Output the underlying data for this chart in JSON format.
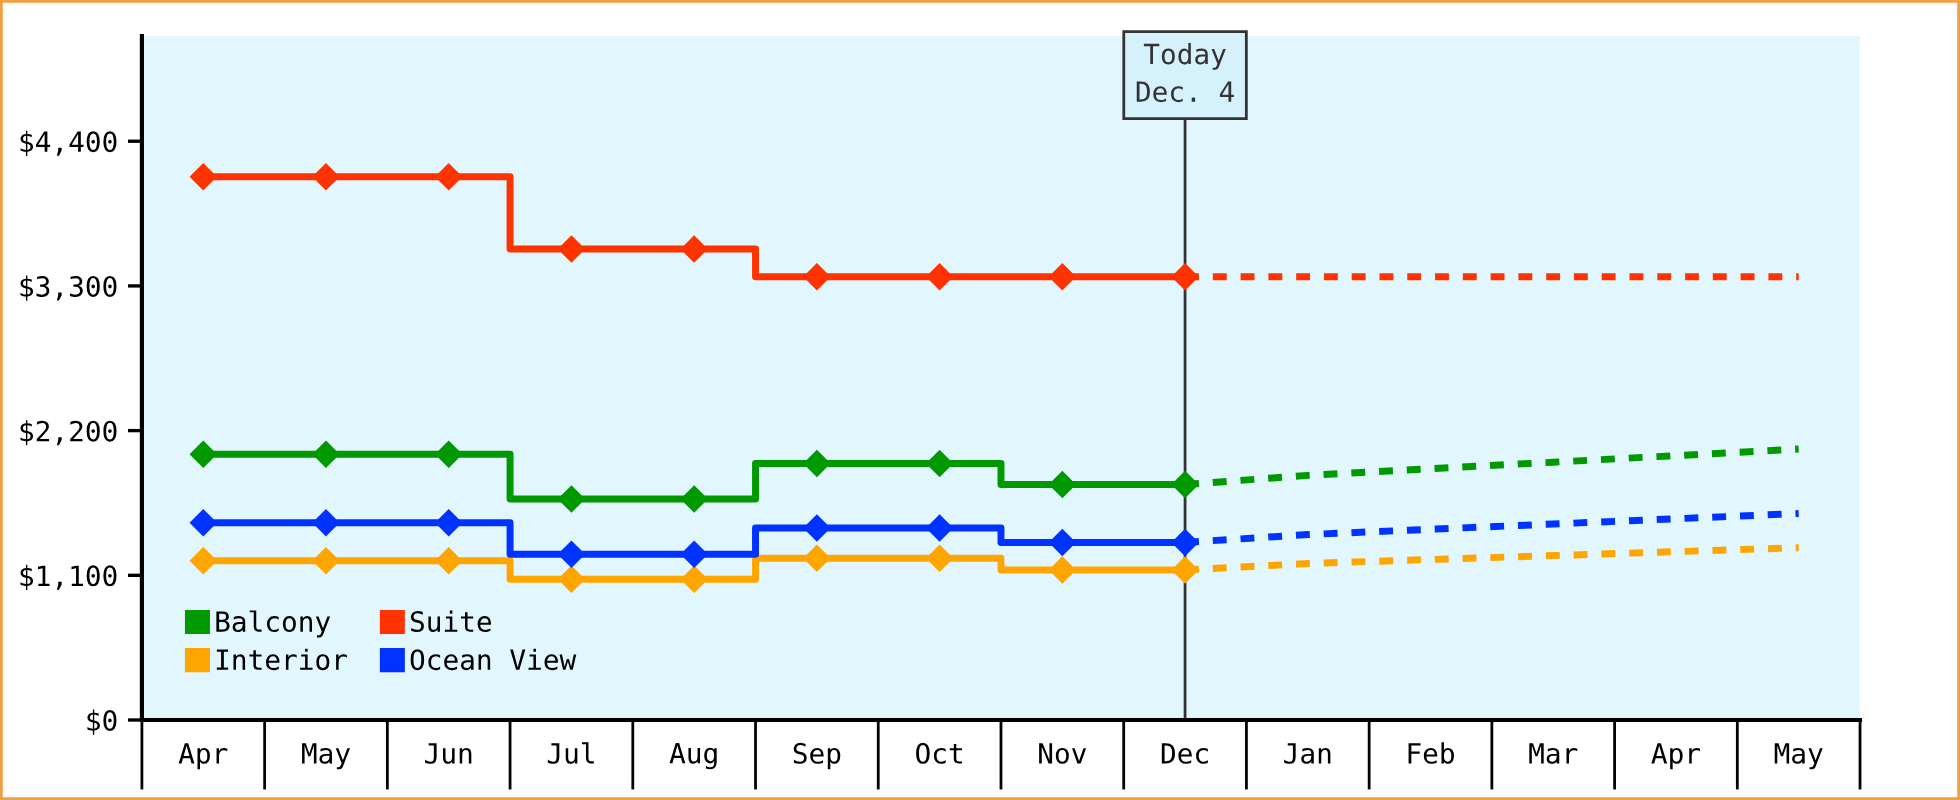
{
  "chart_data": {
    "type": "step",
    "categories": [
      "Apr",
      "May",
      "Jun",
      "Jul",
      "Aug",
      "Sep",
      "Oct",
      "Nov",
      "Dec",
      "Jan",
      "Feb",
      "Mar",
      "Apr",
      "May"
    ],
    "ylim": [
      0,
      5200
    ],
    "yticks": [
      {
        "value": 0,
        "label": "$0"
      },
      {
        "value": 1100,
        "label": "$1,100"
      },
      {
        "value": 2200,
        "label": "$2,200"
      },
      {
        "value": 3300,
        "label": "$3,300"
      },
      {
        "value": 4400,
        "label": "$4,400"
      }
    ],
    "grid": false,
    "legend": "bottom left",
    "marker": "diamond",
    "series": [
      {
        "name": "Balcony",
        "color": "#009900",
        "line_style": "solid",
        "values": [
          2020,
          2020,
          2020,
          1680,
          1680,
          1950,
          1950,
          1790,
          1790,
          null,
          null,
          null,
          null,
          null
        ]
      },
      {
        "name": "Interior",
        "color": "#ffa500",
        "line_style": "solid",
        "values": [
          1210,
          1210,
          1210,
          1070,
          1070,
          1230,
          1230,
          1140,
          1140,
          null,
          null,
          null,
          null,
          null
        ]
      },
      {
        "name": "Suite",
        "color": "#ff3300",
        "line_style": "solid",
        "values": [
          4130,
          4130,
          4130,
          3580,
          3580,
          3370,
          3370,
          3370,
          3370,
          null,
          null,
          null,
          null,
          null
        ]
      },
      {
        "name": "Ocean View",
        "color": "#0033ff",
        "line_style": "solid",
        "values": [
          1500,
          1500,
          1500,
          1260,
          1260,
          1460,
          1460,
          1350,
          1350,
          null,
          null,
          null,
          null,
          null
        ]
      },
      {
        "type": "line",
        "color": "#009900",
        "line_style": "dashed",
        "marker": "none",
        "values": [
          null,
          null,
          null,
          null,
          null,
          null,
          null,
          null,
          1790,
          1860,
          1910,
          1960,
          2010,
          2060
        ]
      },
      {
        "type": "line",
        "color": "#ffa500",
        "line_style": "dashed",
        "marker": "none",
        "values": [
          null,
          null,
          null,
          null,
          null,
          null,
          null,
          null,
          1140,
          1190,
          1220,
          1250,
          1280,
          1310
        ]
      },
      {
        "type": "line",
        "color": "#ff3300",
        "line_style": "dashed",
        "marker": "none",
        "values": [
          null,
          null,
          null,
          null,
          null,
          null,
          null,
          null,
          3370,
          3370,
          3370,
          3370,
          3370,
          3370
        ]
      },
      {
        "type": "line",
        "color": "#0033ff",
        "line_style": "dashed",
        "marker": "none",
        "values": [
          null,
          null,
          null,
          null,
          null,
          null,
          null,
          null,
          1350,
          1410,
          1450,
          1490,
          1530,
          1570
        ]
      }
    ],
    "ref_lines": [
      {
        "axis": "x",
        "value": "Dec",
        "label": "Today\nDec. 4",
        "color": "#333333",
        "line_style": "solid"
      }
    ]
  }
}
